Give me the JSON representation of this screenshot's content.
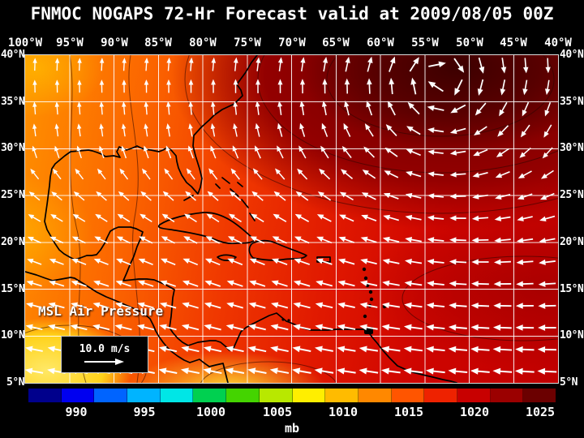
{
  "title": "FNMOC NOGAPS 72-Hr Forecast valid at 2009/08/05 00Z",
  "map": {
    "field_label": "MSL Air Pressure",
    "wind_scale": "10.0 m/s",
    "lon_labels": [
      "100°W",
      "95°W",
      "90°W",
      "85°W",
      "80°W",
      "75°W",
      "70°W",
      "65°W",
      "60°W",
      "55°W",
      "50°W",
      "45°W",
      "40°W"
    ],
    "lat_labels_left": [
      "40°N",
      "35°N",
      "30°N",
      "25°N",
      "20°N",
      "15°N",
      "10°N",
      "5°N"
    ],
    "lat_labels_right": [
      "40°N",
      "35°N",
      "30°N",
      "25°N",
      "20°N",
      "15°N",
      "10°N",
      "5°N"
    ]
  },
  "colorbar": {
    "unit": "mb",
    "tick_labels": [
      "990",
      "995",
      "1000",
      "1005",
      "1010",
      "1015",
      "1020",
      "1025"
    ],
    "colors": [
      "#00008c",
      "#0000f0",
      "#0064ff",
      "#00b4ff",
      "#00e6e6",
      "#00d050",
      "#44d400",
      "#b8e800",
      "#ffee00",
      "#ffbb00",
      "#ff8800",
      "#ff5500",
      "#ee2200",
      "#c80000",
      "#9b0000",
      "#6b0000"
    ]
  },
  "theme": {
    "background": "#000000",
    "text": "#ffffff"
  }
}
